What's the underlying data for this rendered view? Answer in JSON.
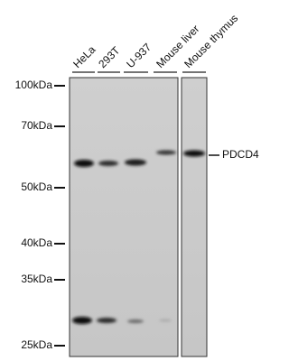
{
  "lanes": [
    "HeLa",
    "293T",
    "U-937",
    "Mouse liver",
    "Mouse thymus"
  ],
  "markers": [
    "100kDa",
    "70kDa",
    "50kDa",
    "40kDa",
    "35kDa",
    "25kDa"
  ],
  "target": "PDCD4"
}
